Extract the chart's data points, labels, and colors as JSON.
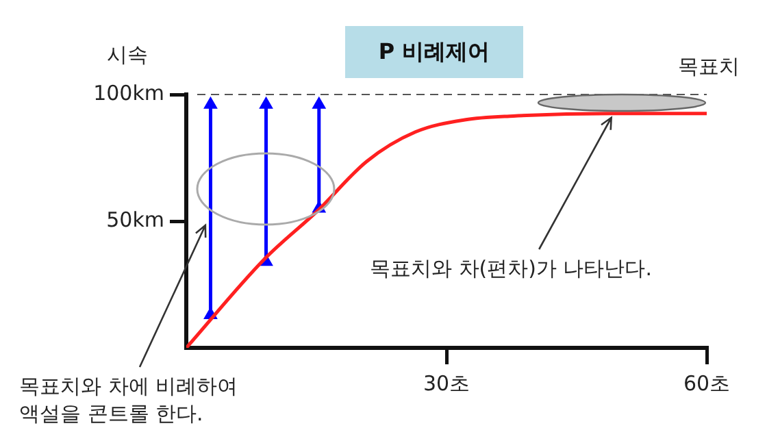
{
  "chart_data": {
    "type": "line",
    "title": "P 비례제어",
    "ylabel": "시속",
    "x": [
      0,
      9,
      15.2,
      20.8,
      26.4,
      32.1,
      37.7,
      49,
      60
    ],
    "series": [
      {
        "color": "#ff2020",
        "values": [
          0,
          35,
          54.3,
          73.6,
          85.2,
          90,
          91.5,
          92.5,
          92.5
        ]
      },
      {
        "type": "line",
        "color": "#0000ff",
        "x": [
          2.8,
          2.8
        ],
        "values": [
          13,
          96
        ],
        "marker": "triangle"
      },
      {
        "type": "line",
        "color": "#0000ff",
        "x": [
          9.2,
          9.2
        ],
        "values": [
          34,
          96
        ],
        "marker": "triangle"
      },
      {
        "type": "line",
        "color": "#0000ff",
        "x": [
          15.3,
          15.3
        ],
        "values": [
          55,
          96
        ],
        "marker": "triangle"
      }
    ],
    "xlim": [
      0,
      60
    ],
    "ylim": [
      0,
      100
    ],
    "xticks": [
      {
        "value": 30,
        "label": "30초"
      },
      {
        "value": 60,
        "label": "60초"
      }
    ],
    "yticks": [
      {
        "value": 50,
        "label": "50km"
      },
      {
        "value": 100,
        "label": "100km"
      }
    ],
    "ref_lines": [
      {
        "axis": "y",
        "value": 100,
        "label": "목표치",
        "color": "#555555",
        "line_style": "dashed"
      }
    ],
    "annotations": [
      {
        "text": "목표치와 차에 비례하여\n액설을 콘트롤 한다.",
        "x": 2.2,
        "y": 50
      },
      {
        "text": "목표치와 차(편차)가 나타난다.",
        "x": 49,
        "y": 92.5
      }
    ],
    "grid": false,
    "legend": false,
    "marker": "none",
    "line_style": "solid"
  }
}
